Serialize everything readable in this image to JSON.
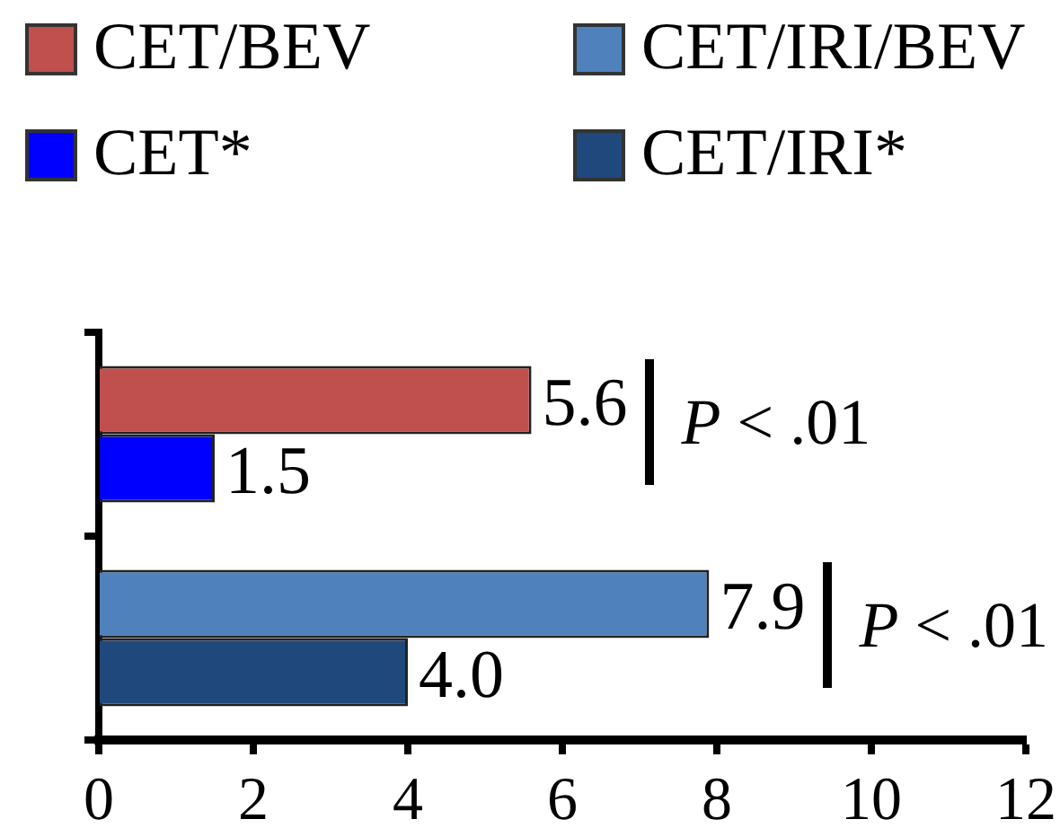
{
  "chart_data": {
    "type": "bar",
    "orientation": "horizontal",
    "categories": [
      null,
      null
    ],
    "series": [
      {
        "name": "CET/BEV",
        "color": "#c0504d",
        "values": [
          5.6,
          null
        ],
        "value_labels": [
          "5.6",
          null
        ]
      },
      {
        "name": "CET/IRI/BEV",
        "color": "#4f81bd",
        "values": [
          null,
          7.9
        ],
        "value_labels": [
          null,
          "7.9"
        ]
      },
      {
        "name": "CET*",
        "color": "#0000ff",
        "values": [
          1.5,
          null
        ],
        "value_labels": [
          "1.5",
          null
        ]
      },
      {
        "name": "CET/IRI*",
        "color": "#1f497d",
        "values": [
          null,
          4.0
        ],
        "value_labels": [
          null,
          "4.0"
        ]
      }
    ],
    "xlim": [
      0,
      12
    ],
    "xticks": [
      0,
      2,
      4,
      6,
      8,
      10,
      12
    ],
    "grid": false,
    "legend": "top",
    "tick_labels": "x",
    "annotations": [
      "P < .01",
      "P < .01"
    ]
  }
}
